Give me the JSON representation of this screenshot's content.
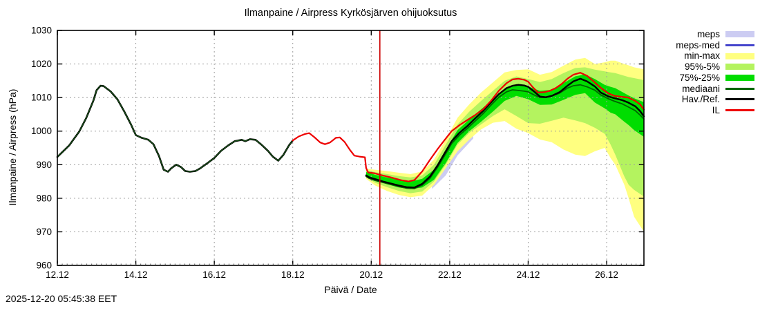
{
  "chart_data": {
    "type": "line",
    "title": "Ilmanpaine / Airpress Kyrkösjärven ohijuoksutus",
    "xlabel": "Päivä / Date",
    "ylabel": "Ilmanpaine / Airpress (hPa)",
    "timestamp": "2025-12-20 05:45:38 EET",
    "x_range": [
      12,
      26.95
    ],
    "y_range": [
      960,
      1030
    ],
    "grid": true,
    "x_ticks": [
      {
        "t": 12,
        "label": "12.12"
      },
      {
        "t": 14,
        "label": "14.12"
      },
      {
        "t": 16,
        "label": "16.12"
      },
      {
        "t": 18,
        "label": "18.12"
      },
      {
        "t": 20,
        "label": "20.12"
      },
      {
        "t": 22,
        "label": "22.12"
      },
      {
        "t": 24,
        "label": "24.12"
      },
      {
        "t": 26,
        "label": "26.12"
      }
    ],
    "y_ticks": [
      960,
      970,
      980,
      990,
      1000,
      1010,
      1020,
      1030
    ],
    "now_marker": {
      "t": 20.22,
      "color": "#cc0000"
    },
    "bands": [
      {
        "name": "meps",
        "color": "#ccccf2",
        "t": [
          21.55,
          21.9,
          22.2,
          22.6
        ],
        "top": [
          984.5,
          990.5,
          995.5,
          999.5
        ],
        "bot": [
          982.8,
          986.8,
          992.8,
          997.8
        ]
      },
      {
        "name": "min-max",
        "color": "#ffff80",
        "t": [
          19.87,
          20.1,
          20.4,
          20.7,
          21.0,
          21.3,
          21.6,
          21.9,
          22.2,
          22.5,
          22.8,
          23.1,
          23.4,
          23.7,
          24.0,
          24.3,
          24.6,
          24.9,
          25.2,
          25.45,
          25.7,
          25.95,
          26.1,
          26.22,
          26.45,
          26.56,
          26.7,
          26.95
        ],
        "top": [
          988.8,
          988.5,
          988.1,
          987.6,
          987.2,
          988.0,
          991.5,
          997.5,
          1004.0,
          1008.0,
          1011.5,
          1014.5,
          1017.5,
          1018.2,
          1018.4,
          1016.8,
          1017.6,
          1019.5,
          1021.3,
          1021.8,
          1020.0,
          1020.5,
          1021.0,
          1021.0,
          1020.0,
          1019.6,
          1019.0,
          1018.4
        ],
        "bot": [
          985.8,
          983.8,
          982.2,
          981.0,
          980.3,
          980.8,
          984.0,
          989.0,
          994.0,
          997.5,
          1000.5,
          1002.5,
          1003.0,
          1000.7,
          999.4,
          997.5,
          996.7,
          994.5,
          993.0,
          992.6,
          994.0,
          995.0,
          992.0,
          990.0,
          984.0,
          980.0,
          974.5,
          970.0
        ]
      },
      {
        "name": "95%-5%",
        "color": "#b4f35f",
        "t": [
          19.87,
          20.1,
          20.4,
          20.7,
          21.0,
          21.3,
          21.6,
          21.9,
          22.2,
          22.5,
          22.8,
          23.1,
          23.4,
          23.7,
          24.0,
          24.3,
          24.6,
          24.9,
          25.2,
          25.45,
          25.7,
          25.95,
          26.1,
          26.22,
          26.45,
          26.56,
          26.7,
          26.95
        ],
        "top": [
          988.3,
          987.8,
          987.2,
          986.6,
          986.2,
          986.8,
          990.0,
          996.0,
          1002.0,
          1005.8,
          1009.0,
          1012.0,
          1015.0,
          1016.3,
          1015.5,
          1014.6,
          1015.5,
          1017.3,
          1018.8,
          1019.0,
          1018.3,
          1017.8,
          1017.5,
          1017.3,
          1016.5,
          1016.1,
          1015.8,
          1015.2
        ],
        "bot": [
          986.3,
          984.6,
          983.3,
          982.2,
          981.5,
          982.0,
          985.0,
          990.0,
          996.0,
          999.5,
          1002.0,
          1004.5,
          1006.5,
          1004.5,
          1002.4,
          1002.2,
          1003.1,
          1004.0,
          1003.2,
          1002.4,
          1001.0,
          999.2,
          996.0,
          993.0,
          986.5,
          984.0,
          982.5,
          980.5
        ]
      },
      {
        "name": "75%-25%",
        "color": "#00dd00",
        "t": [
          19.87,
          20.1,
          20.4,
          20.7,
          21.0,
          21.3,
          21.6,
          21.9,
          22.2,
          22.5,
          22.8,
          23.1,
          23.4,
          23.7,
          24.0,
          24.3,
          24.6,
          24.9,
          25.2,
          25.45,
          25.7,
          25.95,
          26.1,
          26.22,
          26.45,
          26.56,
          26.7,
          26.95
        ],
        "top": [
          987.8,
          987.0,
          986.2,
          985.5,
          985.0,
          985.8,
          988.5,
          994.5,
          1000.3,
          1003.5,
          1006.5,
          1009.5,
          1012.5,
          1014.0,
          1013.3,
          1012.0,
          1012.3,
          1014.3,
          1016.3,
          1016.9,
          1015.5,
          1013.8,
          1013.2,
          1012.8,
          1011.3,
          1010.6,
          1009.8,
          1008.6
        ],
        "bot": [
          986.8,
          985.3,
          984.2,
          983.2,
          982.7,
          983.2,
          985.5,
          990.5,
          996.5,
          1000.0,
          1002.8,
          1005.8,
          1009.0,
          1010.5,
          1009.5,
          1007.8,
          1007.9,
          1009.3,
          1010.8,
          1011.3,
          1008.5,
          1006.8,
          1005.5,
          1005.0,
          1002.8,
          1001.8,
          1000.3,
          998.3
        ]
      }
    ],
    "lines": [
      {
        "name": "havainnot",
        "color": "#000000",
        "overlay_color": "#1b5e1b",
        "width": 2.6,
        "t": [
          12.0,
          12.3,
          12.56,
          12.74,
          12.92,
          13.0,
          13.1,
          13.18,
          13.36,
          13.53,
          13.7,
          13.88,
          14.0,
          14.15,
          14.32,
          14.45,
          14.59,
          14.71,
          14.82,
          14.9,
          15.03,
          15.15,
          15.26,
          15.38,
          15.52,
          15.64,
          15.82,
          16.0,
          16.17,
          16.35,
          16.52,
          16.7,
          16.79,
          16.91,
          17.05,
          17.19,
          17.37,
          17.49,
          17.63,
          17.76,
          17.9,
          18.0
        ],
        "p": [
          992.3,
          995.7,
          999.9,
          1004,
          1009.1,
          1012.2,
          1013.5,
          1013.4,
          1011.8,
          1009.5,
          1006,
          1001.9,
          998.8,
          998,
          997.4,
          996.1,
          992.6,
          988.5,
          987.9,
          988.9,
          990,
          989.3,
          988.1,
          987.9,
          988.1,
          988.9,
          990.4,
          992,
          994.1,
          995.7,
          997,
          997.4,
          997,
          997.6,
          997.4,
          996.1,
          994.1,
          992.4,
          991.2,
          992.9,
          995.7,
          997.2
        ]
      },
      {
        "name": "mediaani",
        "color": "#006400",
        "width": 1.8,
        "t": [
          19.87,
          19.95,
          20.1,
          20.3,
          20.5,
          20.7,
          20.9,
          21.1,
          21.3,
          21.5,
          21.7,
          21.9,
          22.05,
          22.25,
          22.45,
          22.65,
          22.85,
          23.05,
          23.25,
          23.45,
          23.6,
          23.75,
          23.9,
          24.0,
          24.15,
          24.3,
          24.45,
          24.6,
          24.8,
          25.0,
          25.15,
          25.33,
          25.5,
          25.7,
          25.85,
          26.05,
          26.2,
          26.4,
          26.55,
          26.73,
          26.85,
          26.95
        ],
        "p": [
          986.5,
          985.9,
          985.3,
          984.7,
          984.1,
          983.5,
          983.0,
          982.9,
          983.9,
          986.0,
          989.4,
          993.3,
          996.3,
          998.8,
          1000.8,
          1003.0,
          1005.2,
          1007.7,
          1010.1,
          1011.7,
          1012.3,
          1012.1,
          1011.9,
          1011.7,
          1010.8,
          1010.0,
          1010.0,
          1010.4,
          1011.3,
          1012.8,
          1013.5,
          1013.8,
          1013.2,
          1012.2,
          1010.8,
          1009.6,
          1008.9,
          1008.1,
          1007.2,
          1006.1,
          1004.8,
          1003.6
        ]
      },
      {
        "name": "hav-ref",
        "color": "#000000",
        "width": 2.4,
        "t": [
          19.87,
          19.95,
          20.1,
          20.3,
          20.5,
          20.7,
          20.9,
          21.1,
          21.3,
          21.5,
          21.7,
          21.9,
          22.05,
          22.25,
          22.45,
          22.65,
          22.85,
          23.05,
          23.25,
          23.45,
          23.6,
          23.75,
          23.9,
          24.0,
          24.15,
          24.3,
          24.45,
          24.6,
          24.8,
          25.0,
          25.15,
          25.33,
          25.5,
          25.7,
          25.85,
          26.05,
          26.2,
          26.4,
          26.55,
          26.73,
          26.85,
          26.95
        ],
        "p": [
          986.8,
          986.2,
          985.7,
          985,
          984.4,
          983.8,
          983.3,
          983.2,
          984.3,
          986.5,
          990,
          994,
          997,
          999.5,
          1001.5,
          1003.8,
          1006,
          1008.5,
          1011,
          1012.8,
          1013.5,
          1013.8,
          1013.6,
          1013.2,
          1011.8,
          1010.3,
          1010.1,
          1010.5,
          1011.6,
          1013.5,
          1014.8,
          1015.6,
          1014.8,
          1013.3,
          1011.5,
          1010.3,
          1009.8,
          1009.2,
          1008.5,
          1007.4,
          1006,
          1004.4
        ]
      },
      {
        "name": "IL",
        "color": "#ee0000",
        "width": 2.2,
        "t": [
          18.0,
          18.15,
          18.3,
          18.42,
          18.55,
          18.7,
          18.82,
          18.95,
          19.1,
          19.2,
          19.32,
          19.45,
          19.57,
          19.7,
          19.84,
          19.87,
          19.92,
          20.1,
          20.25,
          20.5,
          20.75,
          20.95,
          21.1,
          21.3,
          21.5,
          21.7,
          21.9,
          22.05,
          22.25,
          22.45,
          22.65,
          22.85,
          23.05,
          23.25,
          23.45,
          23.6,
          23.75,
          23.9,
          24.0,
          24.1,
          24.25,
          24.4,
          24.55,
          24.7,
          24.85,
          25.0,
          25.15,
          25.33,
          25.5,
          25.68,
          25.85,
          26.05,
          26.2,
          26.4,
          26.55,
          26.73,
          26.85,
          26.95
        ],
        "p": [
          997.2,
          998.4,
          999.1,
          999.4,
          998.2,
          996.6,
          996.1,
          996.6,
          998,
          998.1,
          996.8,
          994.5,
          992.7,
          992.4,
          992.2,
          989,
          987.7,
          987.4,
          986.9,
          986.2,
          985.4,
          985,
          985.4,
          988,
          991.5,
          994.8,
          997.8,
          1000,
          1001.8,
          1003.3,
          1004.8,
          1006.5,
          1009,
          1012,
          1014.3,
          1015.4,
          1015.6,
          1015.3,
          1014.7,
          1013.3,
          1011.5,
          1011.6,
          1012,
          1012.8,
          1014,
          1015.6,
          1016.8,
          1017.4,
          1016.5,
          1014.7,
          1012.9,
          1011.2,
          1010.5,
          1010.2,
          1010,
          1009,
          1008,
          1006.4
        ]
      }
    ],
    "legend": [
      {
        "label": "meps",
        "type": "band",
        "color": "#ccccf2"
      },
      {
        "label": "meps-med",
        "type": "line",
        "color": "#4444cc"
      },
      {
        "label": "min-max",
        "type": "band",
        "color": "#ffff80"
      },
      {
        "label": "95%-5%",
        "type": "band",
        "color": "#b4f35f"
      },
      {
        "label": "75%-25%",
        "type": "band",
        "color": "#00dd00"
      },
      {
        "label": "mediaani",
        "type": "line",
        "color": "#006400"
      },
      {
        "label": "Hav./Ref.",
        "type": "line",
        "color": "#000000"
      },
      {
        "label": "IL",
        "type": "line",
        "color": "#ee0000"
      }
    ]
  }
}
